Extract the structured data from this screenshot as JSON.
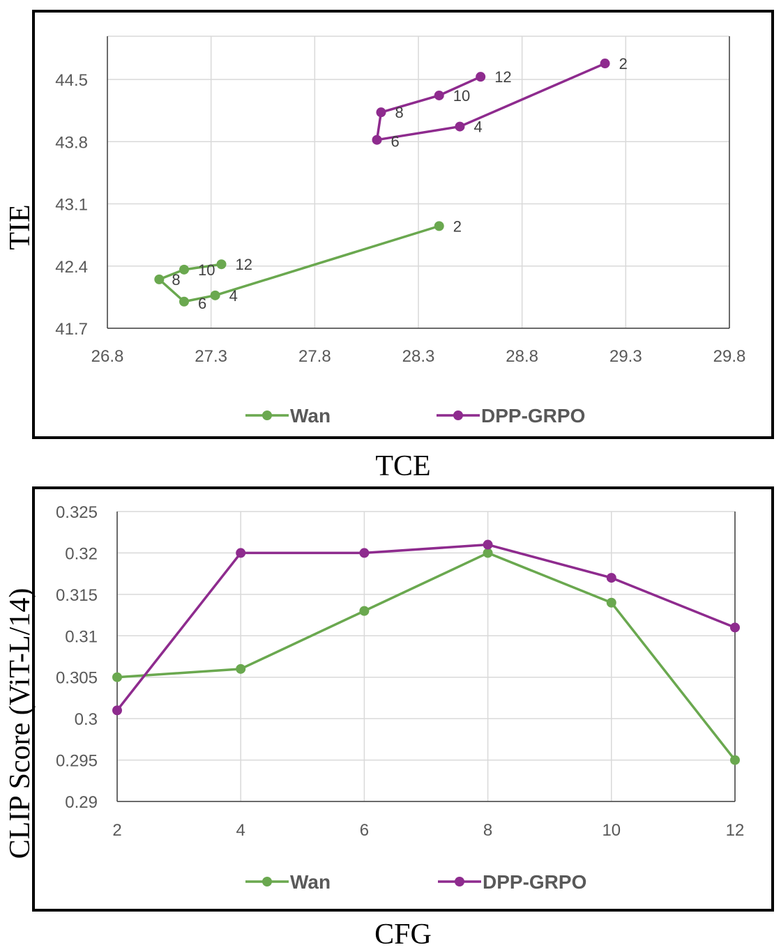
{
  "chart_data": [
    {
      "type": "scatter",
      "xlabel": "TCE",
      "ylabel": "TIE",
      "xlim": [
        26.8,
        29.8
      ],
      "ylim": [
        41.7,
        45.0
      ],
      "xticks": [
        "26.8",
        "27.3",
        "27.8",
        "28.3",
        "28.8",
        "29.3",
        "29.8"
      ],
      "yticks": [
        "41.7",
        "42.4",
        "43.1",
        "43.8",
        "44.5"
      ],
      "grid": true,
      "legend": "bottom",
      "series": [
        {
          "name": "Wan",
          "color": "#6aa84f",
          "points": [
            {
              "x": 28.4,
              "y": 42.85,
              "label": "2"
            },
            {
              "x": 27.32,
              "y": 42.07,
              "label": "4"
            },
            {
              "x": 27.17,
              "y": 42.0,
              "label": "6"
            },
            {
              "x": 27.05,
              "y": 42.25,
              "label": "8"
            },
            {
              "x": 27.17,
              "y": 42.36,
              "label": "10"
            },
            {
              "x": 27.35,
              "y": 42.42,
              "label": "12"
            }
          ]
        },
        {
          "name": "DPP-GRPO",
          "color": "#8e2b8e",
          "points": [
            {
              "x": 29.2,
              "y": 44.68,
              "label": "2"
            },
            {
              "x": 28.5,
              "y": 43.97,
              "label": "4"
            },
            {
              "x": 28.1,
              "y": 43.82,
              "label": "6"
            },
            {
              "x": 28.12,
              "y": 44.13,
              "label": "8"
            },
            {
              "x": 28.4,
              "y": 44.32,
              "label": "10"
            },
            {
              "x": 28.6,
              "y": 44.53,
              "label": "12"
            }
          ]
        }
      ]
    },
    {
      "type": "line",
      "xlabel": "CFG",
      "ylabel": "CLIP Score (ViT-L/14)",
      "xlim": [
        2,
        12
      ],
      "ylim": [
        0.29,
        0.325
      ],
      "xticks": [
        "2",
        "4",
        "6",
        "8",
        "10",
        "12"
      ],
      "yticks": [
        "0.29",
        "0.295",
        "0.3",
        "0.305",
        "0.31",
        "0.315",
        "0.32",
        "0.325"
      ],
      "grid": true,
      "legend": "bottom",
      "x": [
        2,
        4,
        6,
        8,
        10,
        12
      ],
      "series": [
        {
          "name": "Wan",
          "color": "#6aa84f",
          "values": [
            0.305,
            0.306,
            0.313,
            0.32,
            0.314,
            0.295
          ]
        },
        {
          "name": "DPP-GRPO",
          "color": "#8e2b8e",
          "values": [
            0.301,
            0.32,
            0.32,
            0.321,
            0.317,
            0.311
          ]
        }
      ]
    }
  ]
}
